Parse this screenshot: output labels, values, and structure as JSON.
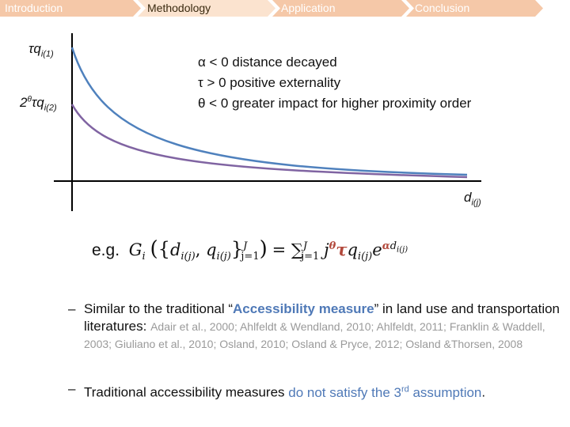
{
  "nav": {
    "items": [
      {
        "label": "Introduction",
        "active": false
      },
      {
        "label": "Methodology",
        "active": true
      },
      {
        "label": "Application",
        "active": false
      },
      {
        "label": "Conclusion",
        "active": false
      }
    ],
    "colors": {
      "inactive": "#f5c8a8",
      "active": "#fbe3cf"
    }
  },
  "diagram": {
    "y_label_1_base": "τq",
    "y_label_1_sub": "i(1)",
    "y_label_2_pre": "2",
    "y_label_2_sup": "θ",
    "y_label_2_base": "τq",
    "y_label_2_sub": "i(2)",
    "x_label_base": "d",
    "x_label_sub": "i(j)",
    "conditions": [
      "α < 0   distance decayed",
      "τ  > 0   positive externality",
      "θ < 0   greater impact for higher proximity order"
    ],
    "curve_colors": {
      "first": "#4f81bd",
      "second": "#8064a2"
    }
  },
  "formula": {
    "prefix": "e.g.",
    "G": "G",
    "G_sub": "i",
    "d": "d",
    "d_sub": "i(j)",
    "comma": ", ",
    "q": "q",
    "q_sub": "i(j)",
    "set_sup": "J",
    "set_sub": "j=1",
    "equals": " = ",
    "sum": "∑",
    "sum_sup": "J",
    "sum_sub": "j=1",
    "j": "j",
    "theta": "θ",
    "tau": "τ",
    "q2": "q",
    "q2_sub": "i(j)",
    "e": "e",
    "alpha": "α",
    "exp_d": "d",
    "exp_d_sub": "i(j)"
  },
  "bullets": [
    {
      "dash": "–",
      "pre": "Similar to the traditional “",
      "highlight": "Accessibility measure",
      "mid": "” in land use and transportation literatures: ",
      "citations": "Adair et al., 2000; Ahlfeldt & Wendland, 2010; Ahlfeldt, 2011; Franklin & Waddell, 2003; Giuliano et al., 2010; Osland, 2010; Osland & Pryce, 2012; Osland &Thorsen, 2008"
    },
    {
      "dash": "–",
      "pre": "Traditional accessibility measures ",
      "highlight": "do not satisfy the 3",
      "highlight_sup": "rd",
      "highlight_end": " assumption",
      "post": "."
    }
  ]
}
